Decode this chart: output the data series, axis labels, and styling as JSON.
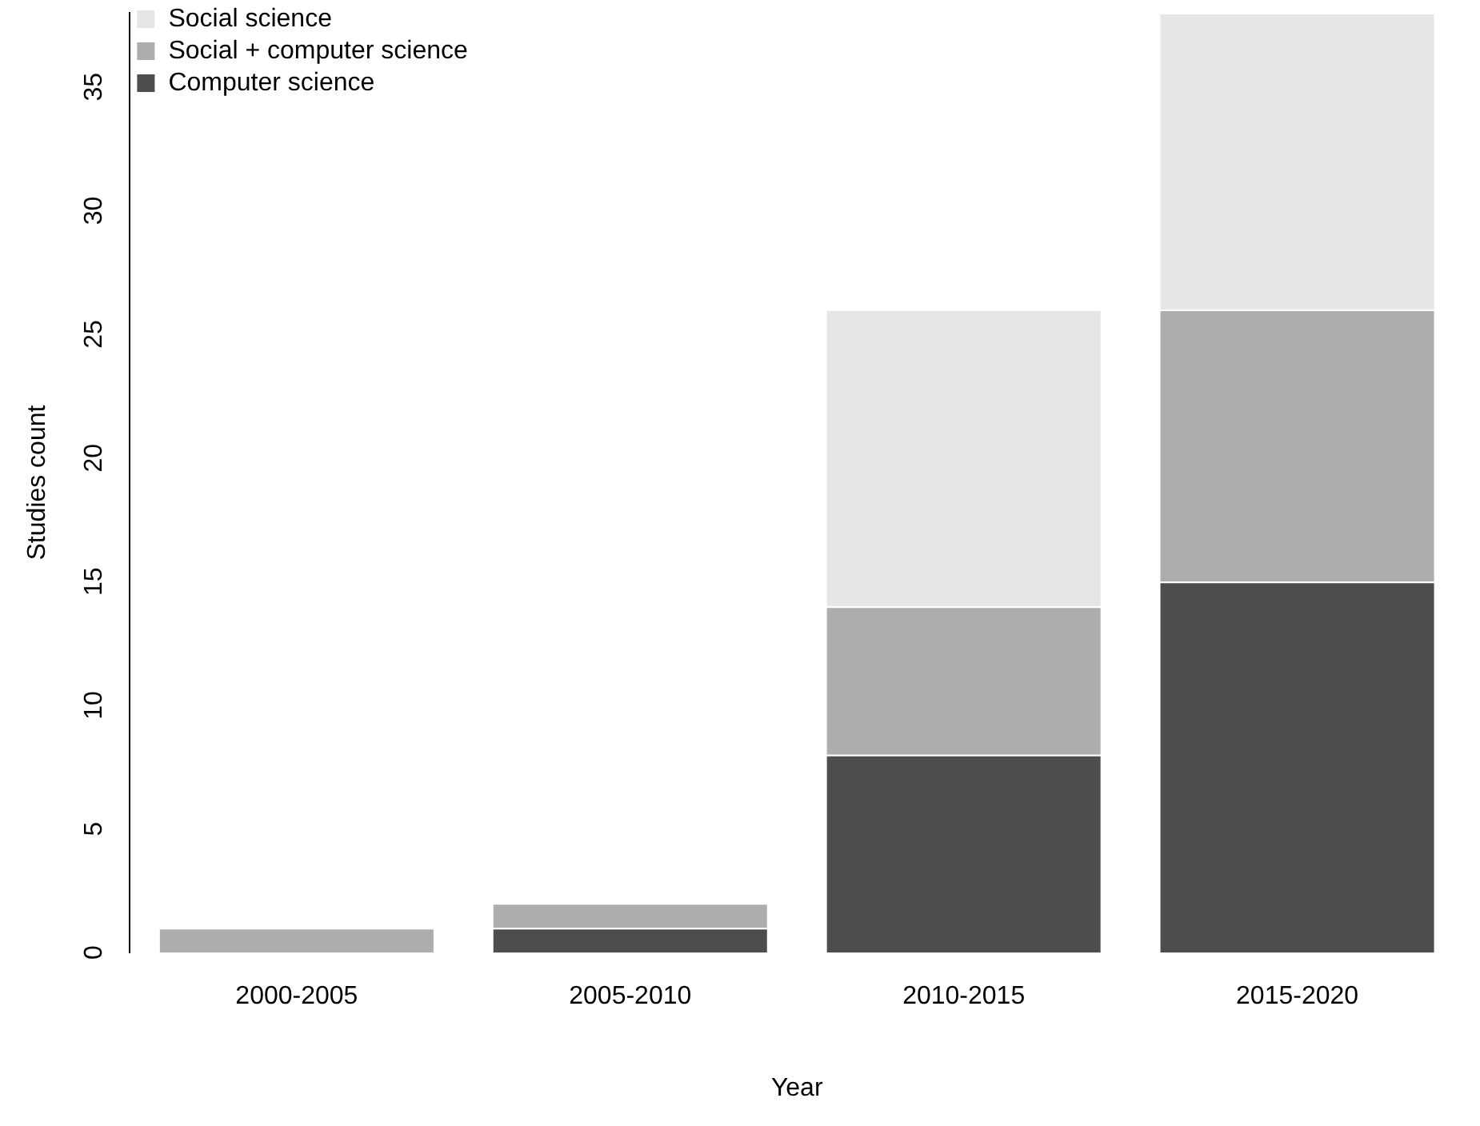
{
  "chart_data": {
    "type": "bar",
    "xlabel": "Year",
    "ylabel": "Studies count",
    "categories": [
      "2000-2005",
      "2005-2010",
      "2010-2015",
      "2015-2020"
    ],
    "series": [
      {
        "name": "Computer science",
        "color": "#4d4d4d",
        "values": [
          0,
          1,
          8,
          15
        ]
      },
      {
        "name": "Social + computer science",
        "color": "#adadad",
        "values": [
          1,
          1,
          6,
          11
        ]
      },
      {
        "name": "Social science",
        "color": "#e6e6e6",
        "values": [
          0,
          0,
          12,
          12
        ]
      }
    ],
    "stacked": true,
    "ylim": [
      0,
      38
    ],
    "yticks": [
      0,
      5,
      10,
      15,
      20,
      25,
      30,
      35
    ],
    "grid": false,
    "legend": "top left"
  }
}
